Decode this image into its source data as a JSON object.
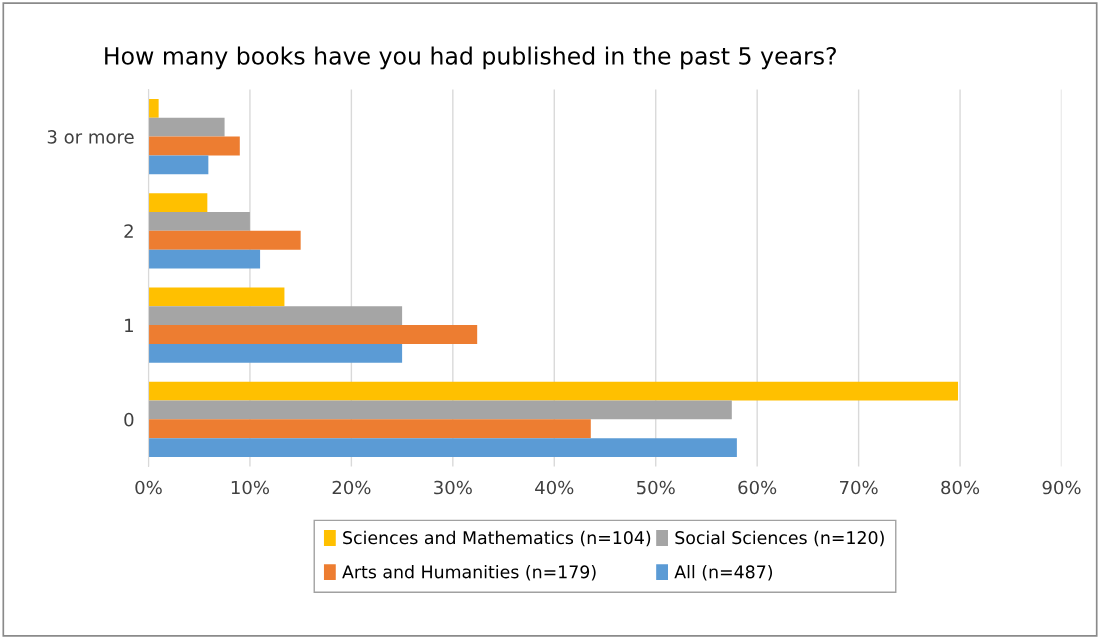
{
  "chart_data": {
    "type": "bar",
    "orientation": "horizontal",
    "title": "How many books have you had published in the past 5 years?",
    "categories": [
      "3 or more",
      "2",
      "1",
      "0"
    ],
    "series": [
      {
        "name": "Sciences and Mathematics (n=104)",
        "color": "#ffc000",
        "values": [
          1.0,
          5.8,
          13.4,
          79.8
        ]
      },
      {
        "name": "Social Sciences (n=120)",
        "color": "#a5a5a5",
        "values": [
          7.5,
          10,
          25,
          57.5
        ]
      },
      {
        "name": "Arts and Humanities (n=179)",
        "color": "#ed7d31",
        "values": [
          9,
          15,
          32.4,
          43.6
        ]
      },
      {
        "name": "All (n=487)",
        "color": "#5b9bd5",
        "values": [
          5.9,
          11,
          25,
          58
        ]
      }
    ],
    "xlim": [
      0,
      90
    ],
    "xticks": [
      {
        "value": 0,
        "label": "0%"
      },
      {
        "value": 10,
        "label": "10%"
      },
      {
        "value": 20,
        "label": "20%"
      },
      {
        "value": 30,
        "label": "30%"
      },
      {
        "value": 40,
        "label": "40%"
      },
      {
        "value": 50,
        "label": "50%"
      },
      {
        "value": 60,
        "label": "60%"
      },
      {
        "value": 70,
        "label": "70%"
      },
      {
        "value": 80,
        "label": "80%"
      },
      {
        "value": 90,
        "label": "90%"
      }
    ],
    "grid": "x",
    "legend": "bottom"
  }
}
